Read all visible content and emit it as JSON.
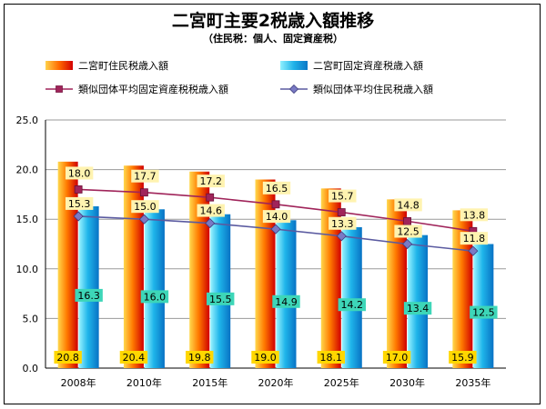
{
  "title": "二宮町主要2税歳入額推移",
  "subtitle": "（住民税：個人、固定資産税）",
  "colors": {
    "bar1_light": "#ffd84d",
    "bar1_mid": "#ff7a00",
    "bar1_dark": "#d00000",
    "bar2_light": "#9af3ff",
    "bar2_mid": "#1fb5ea",
    "bar2_dark": "#0872c4",
    "line1": "#a0245a",
    "line2": "#5a5aa0",
    "label1_bg": "#ffd700",
    "label2_bg": "#3dd6b8",
    "line_label_bg": "#fff3b0"
  },
  "chart_data": {
    "type": "bar",
    "categories": [
      "2008年",
      "2010年",
      "2015年",
      "2020年",
      "2025年",
      "2030年",
      "2035年"
    ],
    "ylim": [
      0,
      25
    ],
    "yticks": [
      "0.0",
      "5.0",
      "10.0",
      "15.0",
      "20.0",
      "25.0"
    ],
    "grid": true,
    "legend_position": "top",
    "series": [
      {
        "name": "二宮町住民税歳入額",
        "kind": "bar",
        "values": [
          20.8,
          20.4,
          19.8,
          19.0,
          18.1,
          17.0,
          15.9
        ]
      },
      {
        "name": "二宮町固定資産税歳入額",
        "kind": "bar",
        "values": [
          16.3,
          16.0,
          15.5,
          14.9,
          14.2,
          13.4,
          12.5
        ]
      },
      {
        "name": "類似団体平均固定資産税税歳入額",
        "kind": "line",
        "values": [
          18.0,
          17.7,
          17.2,
          16.5,
          15.7,
          14.8,
          13.8
        ]
      },
      {
        "name": "類似団体平均住民税歳入額",
        "kind": "line",
        "values": [
          15.3,
          15.0,
          14.6,
          14.0,
          13.3,
          12.5,
          11.8
        ]
      }
    ]
  }
}
